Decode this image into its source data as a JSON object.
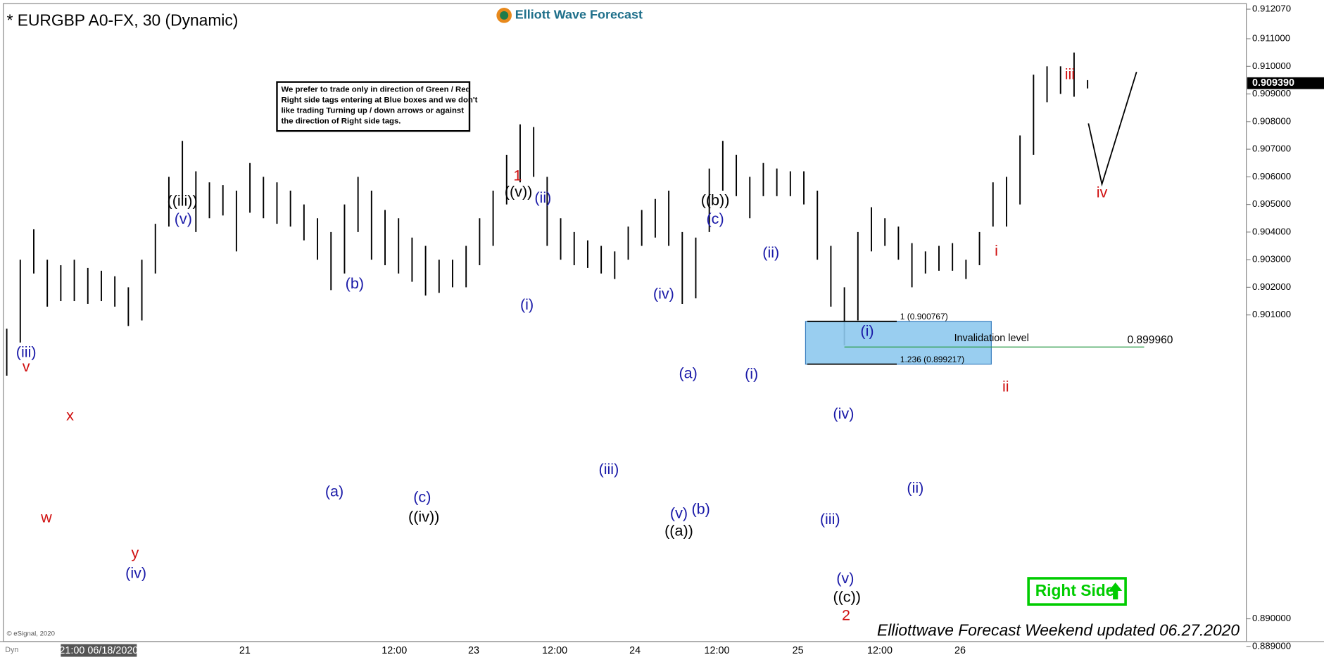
{
  "chart_data": {
    "type": "hilo",
    "title": "* EURGBP A0-FX, 30 (Dynamic)",
    "logo": "Elliott Wave Forecast",
    "note": [
      "We prefer to trade only in direction of Green / Red",
      "Right side tags entering at Blue boxes and we don't",
      "like trading Turning up / down arrows or against",
      "the direction of Right side tags."
    ],
    "highs": [
      0.9005,
      0.903,
      0.9041,
      0.903,
      0.9028,
      0.903,
      0.9027,
      0.9026,
      0.9024,
      0.902,
      0.903,
      0.9043,
      0.906,
      0.9073,
      0.9062,
      0.9058,
      0.9057,
      0.9055,
      0.9065,
      0.906,
      0.9058,
      0.9055,
      0.905,
      0.9045,
      0.904,
      0.905,
      0.906,
      0.9055,
      0.9048,
      0.9045,
      0.9038,
      0.9035,
      0.903,
      0.903,
      0.9035,
      0.9045,
      0.9055,
      0.9068,
      0.9079,
      0.9078,
      0.906,
      0.9045,
      0.904,
      0.9037,
      0.9035,
      0.9033,
      0.9042,
      0.9048,
      0.9052,
      0.9055,
      0.904,
      0.9038,
      0.9063,
      0.9073,
      0.9068,
      0.906,
      0.9065,
      0.9063,
      0.9062,
      0.9062,
      0.9055,
      0.9035,
      0.902,
      0.904,
      0.9049,
      0.9045,
      0.9042,
      0.9036,
      0.9033,
      0.9035,
      0.9036,
      0.903,
      0.904,
      0.9058,
      0.906,
      0.9075,
      0.9097,
      0.91,
      0.91,
      0.9105,
      0.9095
    ],
    "lows": [
      0.8988,
      0.9,
      0.9025,
      0.9013,
      0.9015,
      0.9015,
      0.9014,
      0.9015,
      0.9013,
      0.9006,
      0.9008,
      0.9025,
      0.9042,
      0.9052,
      0.904,
      0.9045,
      0.9046,
      0.9033,
      0.9047,
      0.9045,
      0.9043,
      0.9042,
      0.9037,
      0.903,
      0.9019,
      0.9025,
      0.904,
      0.903,
      0.9028,
      0.9025,
      0.9022,
      0.9017,
      0.9018,
      0.902,
      0.902,
      0.9028,
      0.9035,
      0.905,
      0.9058,
      0.906,
      0.9035,
      0.903,
      0.9028,
      0.9027,
      0.9025,
      0.9023,
      0.903,
      0.9035,
      0.9038,
      0.9035,
      0.9014,
      0.9016,
      0.904,
      0.9055,
      0.9053,
      0.9045,
      0.9053,
      0.9053,
      0.9053,
      0.905,
      0.903,
      0.9013,
      0.8999,
      0.9008,
      0.9033,
      0.9035,
      0.903,
      0.902,
      0.9025,
      0.9026,
      0.9026,
      0.9023,
      0.9028,
      0.9042,
      0.9042,
      0.905,
      0.9068,
      0.9087,
      0.909,
      0.9089,
      0.9092
    ],
    "ylim": [
      0.8894,
      0.9122
    ],
    "yticks": [
      {
        "value": 0.889,
        "label": "0.889000"
      },
      {
        "value": 0.89,
        "label": "0.890000"
      },
      {
        "value": 0.901,
        "label": "0.901000"
      },
      {
        "value": 0.902,
        "label": "0.902000"
      },
      {
        "value": 0.903,
        "label": "0.903000"
      },
      {
        "value": 0.904,
        "label": "0.904000"
      },
      {
        "value": 0.905,
        "label": "0.905000"
      },
      {
        "value": 0.906,
        "label": "0.906000"
      },
      {
        "value": 0.907,
        "label": "0.907000"
      },
      {
        "value": 0.908,
        "label": "0.908000"
      },
      {
        "value": 0.909,
        "label": "0.909000"
      },
      {
        "value": 0.91,
        "label": "0.910000"
      },
      {
        "value": 0.911,
        "label": "0.911000"
      },
      {
        "value": 0.91207,
        "label": "0.912070"
      }
    ],
    "last_price": {
      "value": 0.90939,
      "label": "0.909390"
    },
    "x_labels": [
      "21:00 06/18/2020",
      "21",
      "12:00",
      "23",
      "12:00",
      "24",
      "12:00",
      "25",
      "12:00",
      "26"
    ],
    "wave_labels": [
      "(iii)",
      "v",
      "x",
      "w",
      "y",
      "(iv)",
      "((iii))",
      "(v)",
      "(a)",
      "(b)",
      "(c)",
      "((iv))",
      "1",
      "((v))",
      "(ii)",
      "(i)",
      "(iii)",
      "(iv)",
      "(a)",
      "(v)",
      "(b)",
      "((a))",
      "((b))",
      "(c)",
      "(ii)",
      "(i)",
      "(iv)",
      "(iii)",
      "(v)",
      "((c))",
      "2",
      "(i)",
      "(ii)",
      "i",
      "ii",
      "iii",
      "iv"
    ],
    "fib_levels": [
      {
        "value": 0.900767,
        "label": "1 (0.900767)"
      },
      {
        "value": 0.899217,
        "label": "1.236 (0.899217)"
      }
    ],
    "invalidation": {
      "value": 0.89996,
      "text": "Invalidation level",
      "label": "0.899960"
    },
    "right_side": "Right Side",
    "footer": "Elliottwave Forecast Weekend updated 06.27.2020",
    "copyright": "© eSignal, 2020",
    "dyn": "Dyn"
  }
}
